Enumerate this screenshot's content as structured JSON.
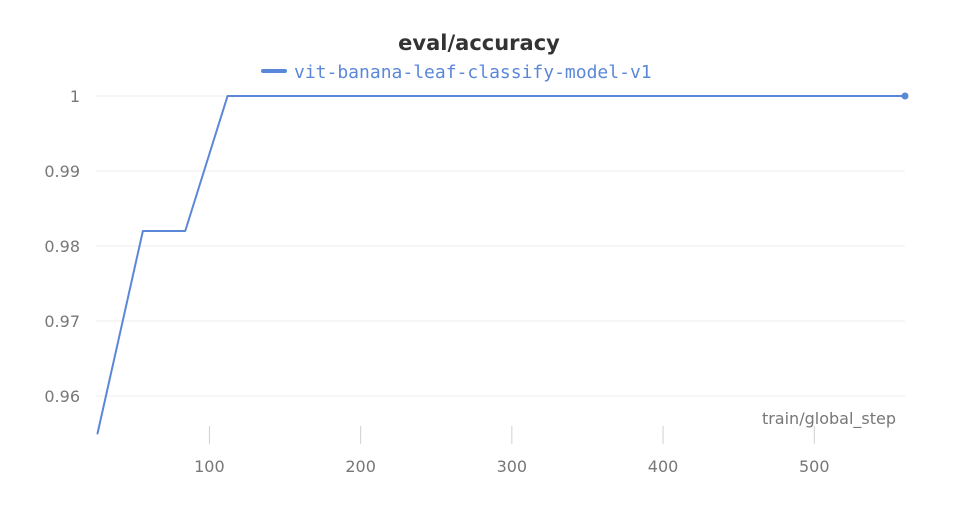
{
  "chart_data": {
    "type": "line",
    "title": "eval/accuracy",
    "xlabel": "train/global_step",
    "ylabel": "",
    "xlim": [
      25,
      560
    ],
    "ylim": [
      0.9548,
      1.0
    ],
    "x_ticks": [
      100,
      200,
      300,
      400,
      500
    ],
    "y_ticks": [
      0.96,
      0.97,
      0.98,
      0.99,
      1
    ],
    "grid": true,
    "legend": "top-center",
    "series": [
      {
        "name": "vit-banana-leaf-classify-model-v1",
        "color": "#5b87d9",
        "x": [
          26,
          56,
          84,
          112,
          140,
          168,
          196,
          224,
          252,
          280,
          308,
          336,
          364,
          392,
          420,
          448,
          476,
          504,
          532,
          560
        ],
        "y": [
          0.955,
          0.982,
          0.982,
          1,
          1,
          1,
          1,
          1,
          1,
          1,
          1,
          1,
          1,
          1,
          1,
          1,
          1,
          1,
          1,
          1
        ]
      }
    ]
  }
}
